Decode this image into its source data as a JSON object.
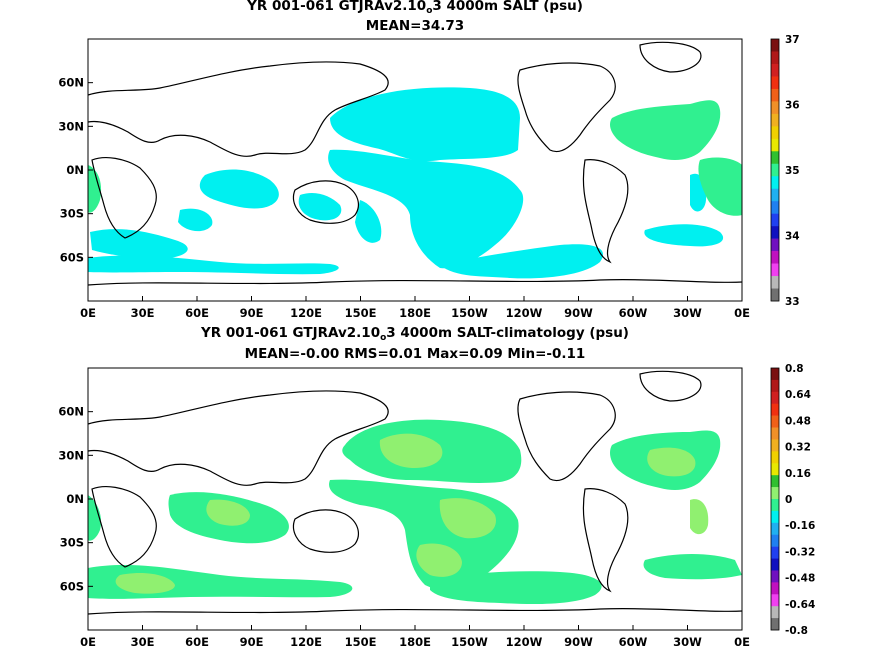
{
  "panels": [
    {
      "title_pre": "YR 001-061 GTJRAv2.10",
      "title_sub": "o",
      "title_post": "3 4000m SALT (psu)",
      "subtitle": "MEAN=34.73",
      "lat_labels": [
        "60N",
        "30N",
        "0N",
        "30S",
        "60S"
      ],
      "lon_labels": [
        "0E",
        "30E",
        "60E",
        "90E",
        "120E",
        "150E",
        "180E",
        "150W",
        "120W",
        "90W",
        "60W",
        "30W",
        "0E"
      ],
      "colorbar_labels": [
        "37",
        "36",
        "35",
        "34",
        "33"
      ],
      "colorbar_colors": [
        "#7a1010",
        "#b01818",
        "#d02020",
        "#f03010",
        "#f06018",
        "#f09028",
        "#f0b020",
        "#f0d000",
        "#e8e800",
        "#30c030",
        "#30f090",
        "#00f0f0",
        "#20b0f0",
        "#1f80f0",
        "#2040f0",
        "#1010c0",
        "#7010c0",
        "#c010c0",
        "#f040f0",
        "#b8b8b8",
        "#707070"
      ],
      "fill_colors": {
        "cyan": "#00f0f0",
        "mint": "#30f090"
      }
    },
    {
      "title_pre": "YR 001-061 GTJRAv2.10",
      "title_sub": "o",
      "title_post": "3 4000m SALT-climatology (psu)",
      "subtitle": "MEAN=-0.00   RMS=0.01   Max=0.09   Min=-0.11",
      "lat_labels": [
        "60N",
        "30N",
        "0N",
        "30S",
        "60S"
      ],
      "lon_labels": [
        "0E",
        "30E",
        "60E",
        "90E",
        "120E",
        "150E",
        "180E",
        "150W",
        "120W",
        "90W",
        "60W",
        "30W",
        "0E"
      ],
      "colorbar_labels": [
        "0.8",
        "0.64",
        "0.48",
        "0.32",
        "0.16",
        "0",
        "-0.16",
        "-0.32",
        "-0.48",
        "-0.64",
        "-0.8"
      ],
      "colorbar_colors": [
        "#7a1010",
        "#b01818",
        "#d02020",
        "#f03010",
        "#f06018",
        "#f09028",
        "#f0b020",
        "#f0d000",
        "#e8e800",
        "#30c030",
        "#90f070",
        "#30f090",
        "#00f0f0",
        "#20b0f0",
        "#1f80f0",
        "#2040f0",
        "#1010c0",
        "#7010c0",
        "#c010c0",
        "#f040f0",
        "#b8b8b8",
        "#707070"
      ],
      "fill_colors": {
        "mint": "#30f090",
        "light_green": "#90f070"
      }
    }
  ]
}
